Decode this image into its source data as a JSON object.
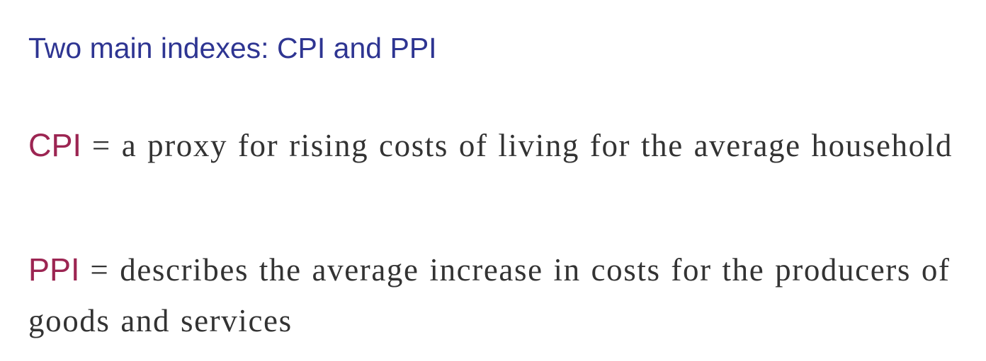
{
  "slide": {
    "title": "Two main indexes: CPI and PPI",
    "definitions": [
      {
        "term": "CPI",
        "text": " = a proxy for rising costs of living for the average household"
      },
      {
        "term": "PPI",
        "text": " = describes the average increase in costs for the producers of goods and services"
      }
    ]
  },
  "colors": {
    "title": "#2e3592",
    "term": "#9c2552",
    "body_text": "#333333",
    "background": "#ffffff"
  }
}
